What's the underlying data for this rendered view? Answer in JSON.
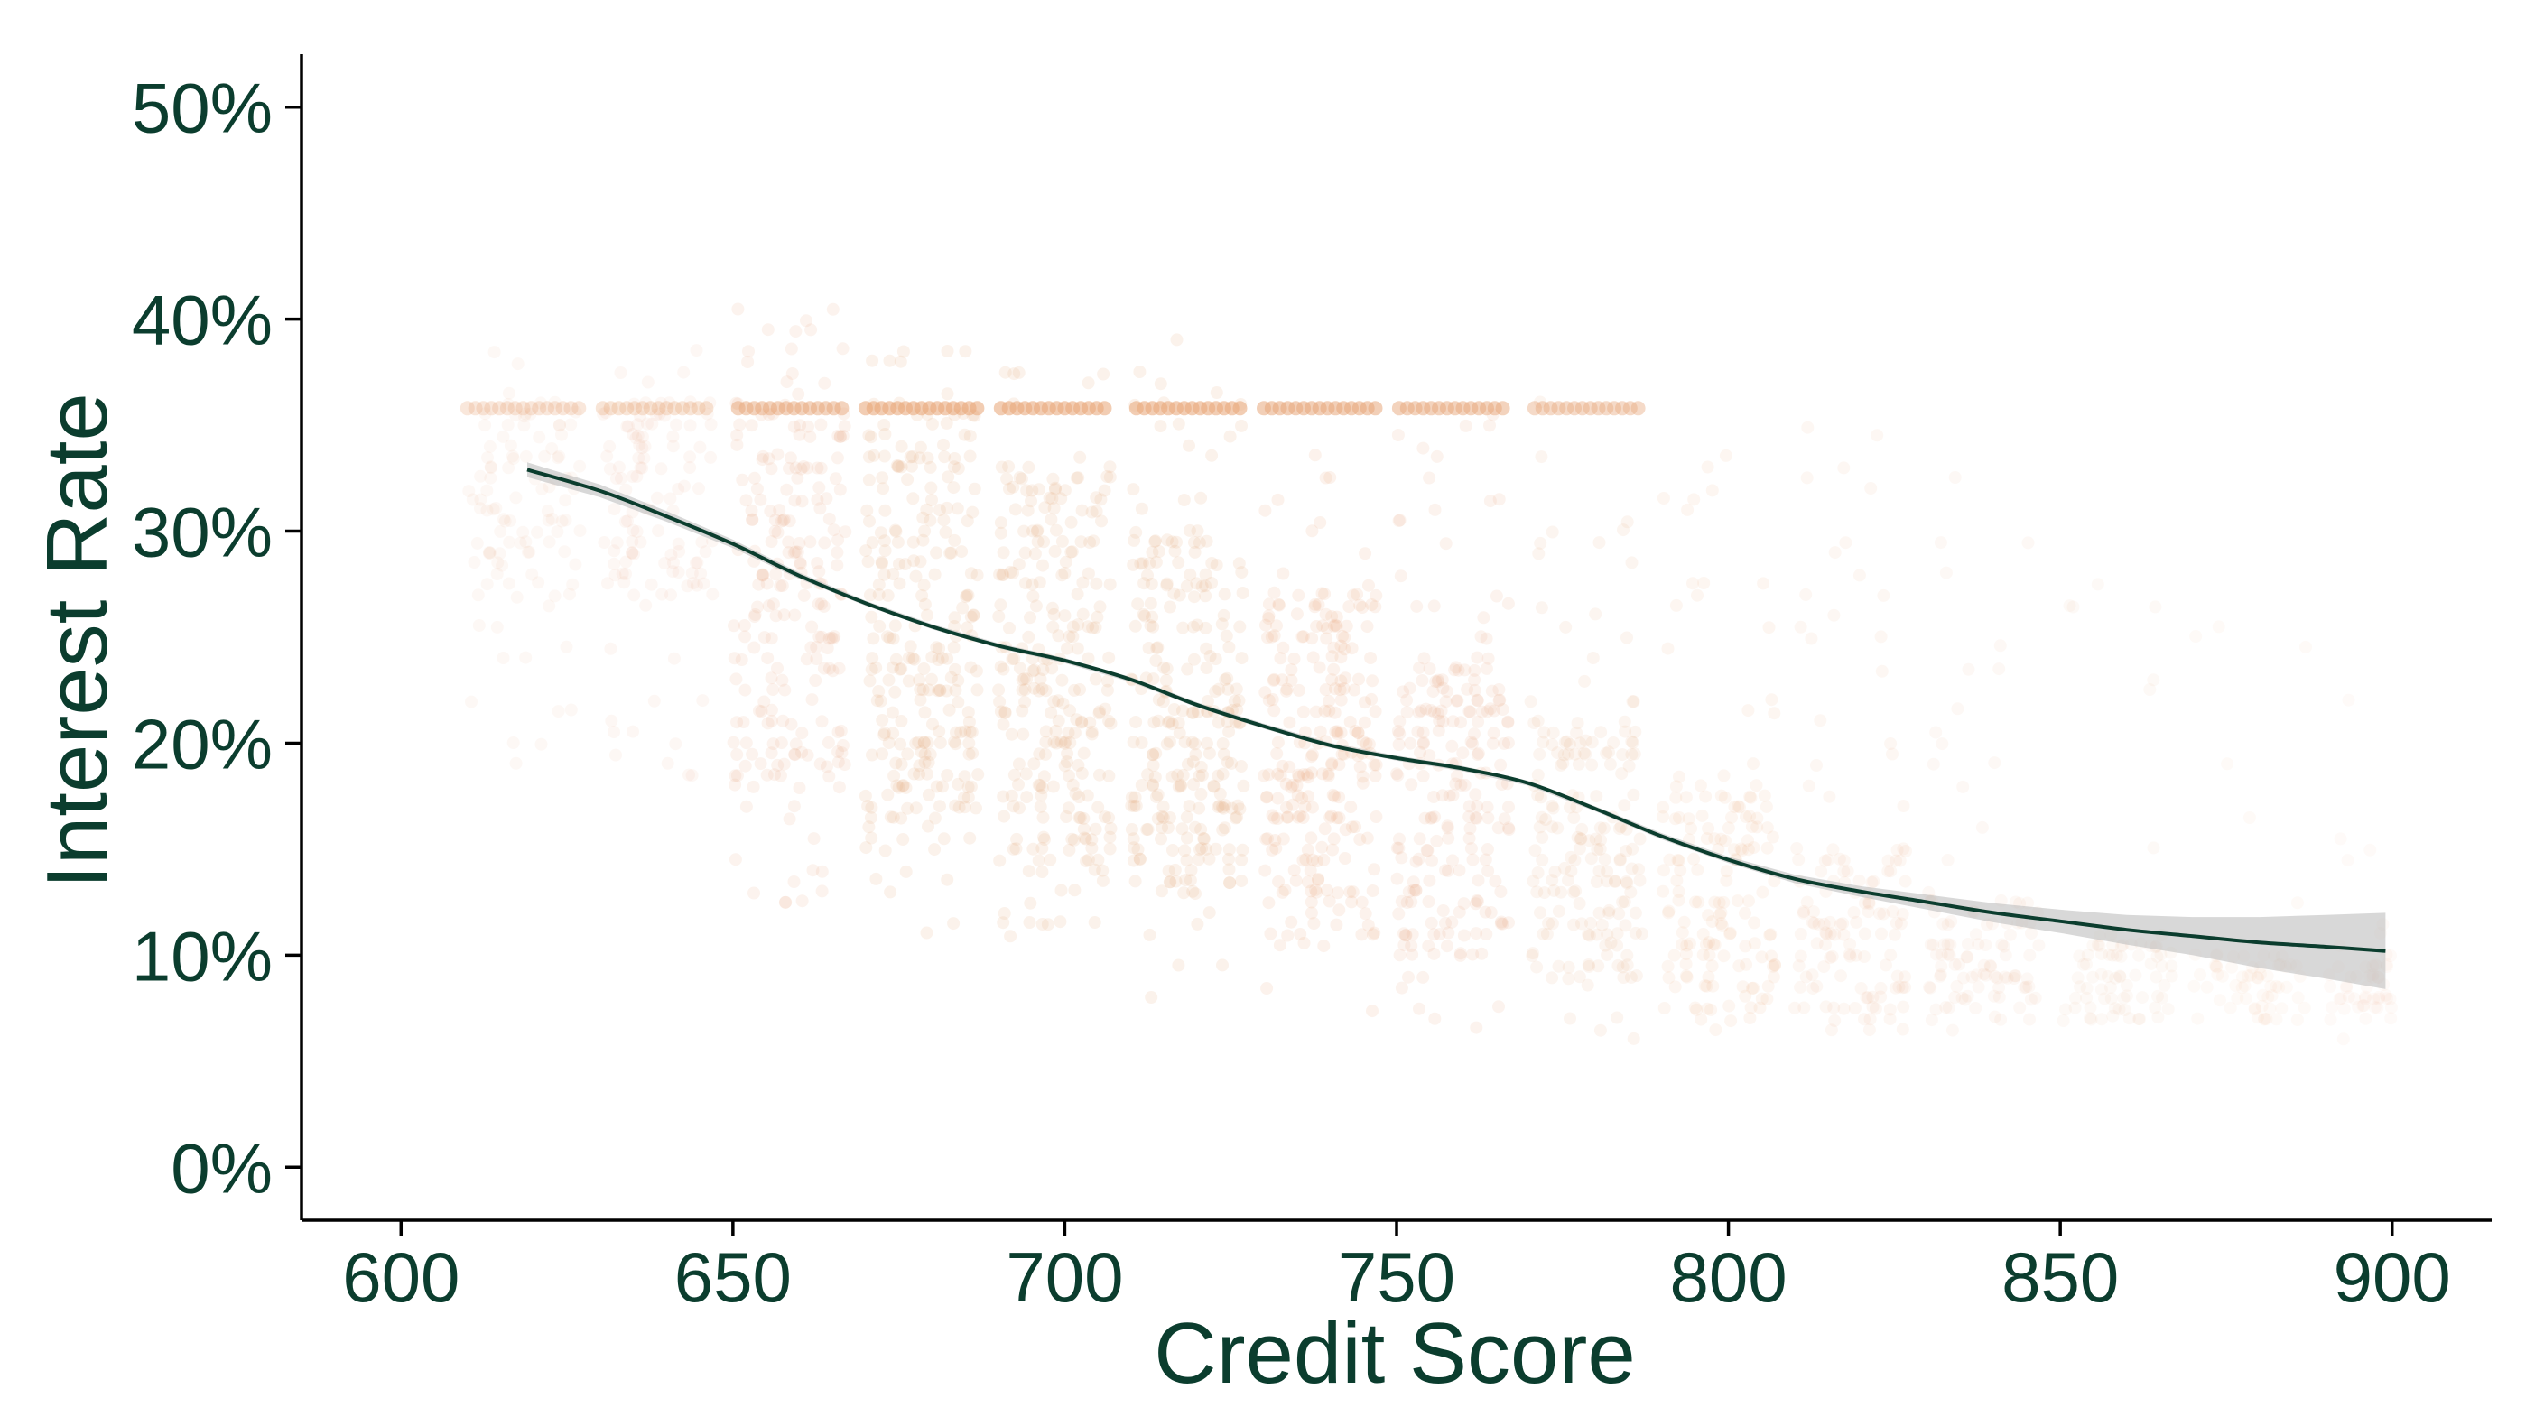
{
  "chart_data": {
    "type": "scatter",
    "title": "",
    "xlabel": "Credit Score",
    "ylabel": "Interest Rate",
    "xlim": [
      585,
      915
    ],
    "ylim": [
      -2.5,
      52.5
    ],
    "x_ticks": [
      600,
      650,
      700,
      750,
      800,
      850,
      900
    ],
    "x_tick_labels": [
      "600",
      "650",
      "700",
      "750",
      "800",
      "850",
      "900"
    ],
    "y_ticks": [
      0,
      10,
      20,
      30,
      40,
      50
    ],
    "y_tick_labels": [
      "0%",
      "10%",
      "20%",
      "30%",
      "40%",
      "50%"
    ],
    "grid": false,
    "legend": "none",
    "point_color": "#E8A87C",
    "text_color": "#0B3D2E",
    "line_color": "#0B3D2E",
    "band_color": "#BEBEBE",
    "score_bins": [
      {
        "x_min": 610,
        "x_max": 627,
        "y_range": [
          17,
          39
        ],
        "core_range": [
          27,
          36
        ],
        "intensity": 0.25
      },
      {
        "x_min": 630,
        "x_max": 647,
        "y_range": [
          18,
          39
        ],
        "core_range": [
          27,
          36
        ],
        "intensity": 0.3
      },
      {
        "x_min": 650,
        "x_max": 667,
        "y_range": [
          12,
          41
        ],
        "core_range": [
          18,
          36
        ],
        "intensity": 0.7
      },
      {
        "x_min": 670,
        "x_max": 687,
        "y_range": [
          11,
          39
        ],
        "core_range": [
          15,
          36
        ],
        "intensity": 0.85
      },
      {
        "x_min": 690,
        "x_max": 707,
        "y_range": [
          11,
          38
        ],
        "core_range": [
          14,
          33
        ],
        "intensity": 0.85
      },
      {
        "x_min": 710,
        "x_max": 727,
        "y_range": [
          8,
          39
        ],
        "core_range": [
          13,
          30
        ],
        "intensity": 0.85
      },
      {
        "x_min": 730,
        "x_max": 747,
        "y_range": [
          7,
          36
        ],
        "core_range": [
          11,
          27
        ],
        "intensity": 0.8
      },
      {
        "x_min": 750,
        "x_max": 767,
        "y_range": [
          6,
          36
        ],
        "core_range": [
          10,
          24
        ],
        "intensity": 0.7
      },
      {
        "x_min": 770,
        "x_max": 787,
        "y_range": [
          6,
          36
        ],
        "core_range": [
          9,
          22
        ],
        "intensity": 0.55
      },
      {
        "x_min": 790,
        "x_max": 807,
        "y_range": [
          6,
          36
        ],
        "core_range": [
          7,
          18
        ],
        "intensity": 0.45
      },
      {
        "x_min": 810,
        "x_max": 827,
        "y_range": [
          6,
          36
        ],
        "core_range": [
          7,
          15
        ],
        "intensity": 0.35
      },
      {
        "x_min": 830,
        "x_max": 847,
        "y_range": [
          6,
          33
        ],
        "core_range": [
          7,
          13
        ],
        "intensity": 0.25
      },
      {
        "x_min": 850,
        "x_max": 867,
        "y_range": [
          6,
          28
        ],
        "core_range": [
          7,
          11
        ],
        "intensity": 0.15
      },
      {
        "x_min": 870,
        "x_max": 887,
        "y_range": [
          6,
          26
        ],
        "core_range": [
          7,
          10
        ],
        "intensity": 0.1
      },
      {
        "x_min": 890,
        "x_max": 900,
        "y_range": [
          6,
          24
        ],
        "core_range": [
          7,
          10
        ],
        "intensity": 0.05
      }
    ],
    "rate_cap_band": {
      "y": 35.8,
      "x_range": [
        610,
        787
      ]
    },
    "smooth_fit": {
      "x": [
        619,
        630,
        640,
        650,
        660,
        670,
        680,
        690,
        700,
        710,
        720,
        730,
        740,
        750,
        760,
        770,
        780,
        790,
        800,
        810,
        820,
        830,
        840,
        850,
        860,
        870,
        880,
        890,
        899
      ],
      "y": [
        32.9,
        31.9,
        30.7,
        29.4,
        27.9,
        26.6,
        25.5,
        24.6,
        23.9,
        23.0,
        21.8,
        20.8,
        19.9,
        19.3,
        18.8,
        18.1,
        16.9,
        15.6,
        14.5,
        13.6,
        13.0,
        12.5,
        12.0,
        11.6,
        11.2,
        10.9,
        10.6,
        10.4,
        10.2
      ],
      "ci_half_width": [
        0.35,
        0.3,
        0.25,
        0.2,
        0.15,
        0.12,
        0.12,
        0.12,
        0.12,
        0.12,
        0.12,
        0.12,
        0.12,
        0.12,
        0.12,
        0.12,
        0.12,
        0.15,
        0.15,
        0.2,
        0.25,
        0.35,
        0.45,
        0.55,
        0.7,
        0.9,
        1.2,
        1.5,
        1.8
      ]
    }
  }
}
